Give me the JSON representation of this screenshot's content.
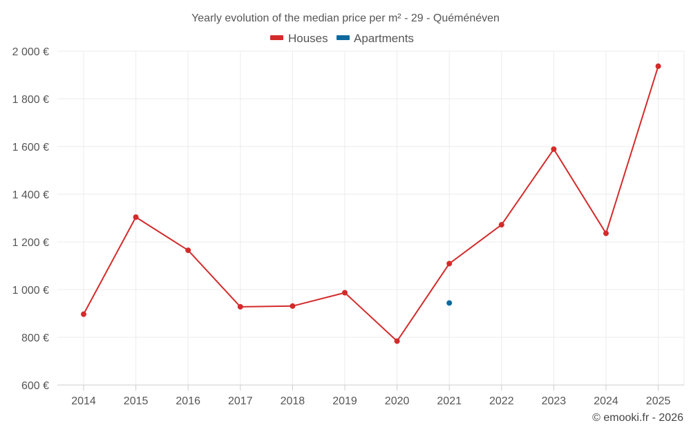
{
  "chart_data": {
    "type": "line",
    "title": "Yearly evolution of the median price per m² - 29 - Quéménéven",
    "categories": [
      "2014",
      "2015",
      "2016",
      "2017",
      "2018",
      "2019",
      "2020",
      "2021",
      "2022",
      "2023",
      "2024",
      "2025"
    ],
    "series": [
      {
        "name": "Houses",
        "color": "#d42a2a",
        "values": [
          897,
          1304,
          1165,
          928,
          931,
          987,
          784,
          1109,
          1272,
          1589,
          1236,
          1937
        ]
      },
      {
        "name": "Apartments",
        "color": "#0e6a9e",
        "values": [
          null,
          null,
          null,
          null,
          null,
          null,
          null,
          944,
          null,
          null,
          null,
          null
        ]
      }
    ],
    "ylim": [
      600,
      2000
    ],
    "yticks": [
      2000,
      1800,
      1600,
      1400,
      1200,
      1000,
      800,
      600
    ],
    "ytick_labels": [
      "2 000 €",
      "1 800 €",
      "1 600 €",
      "1 400 €",
      "1 200 €",
      "1 000 €",
      "800 €",
      "600 €"
    ],
    "grid": true,
    "legend_position": "top-center",
    "credit": "© emooki.fr - 2026"
  }
}
